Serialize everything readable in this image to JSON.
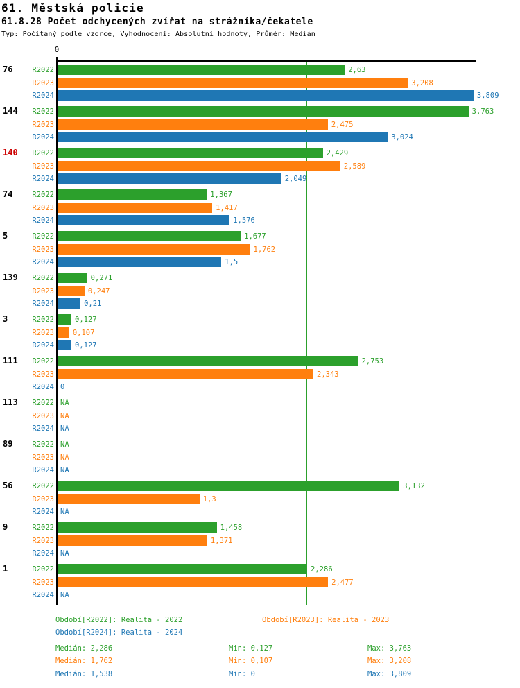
{
  "header": {
    "title": "61. Městská policie",
    "subtitle": "61.8.28 Počet odchycených zvířat na strážníka/čekatele",
    "meta": "Typ: Počítaný podle vzorce, Vyhodnocení: Absolutní hodnoty, Průměr: Medián"
  },
  "axis": {
    "zero_label": "0"
  },
  "colors": {
    "green": "#2ca02c",
    "orange": "#ff7f0e",
    "blue": "#1f77b4",
    "red": "#cc0000",
    "black": "#000000"
  },
  "chart_data": {
    "type": "bar",
    "orientation": "horizontal",
    "title": "61.8.28 Počet odchycených zvířat na strážníka/čekatele",
    "xlabel": "",
    "ylabel": "",
    "xlim": [
      0,
      3.84
    ],
    "grid": false,
    "series_labels": [
      "R2022",
      "R2023",
      "R2024"
    ],
    "series_colors": {
      "R2022": "#2ca02c",
      "R2023": "#ff7f0e",
      "R2024": "#1f77b4"
    },
    "groups": [
      {
        "label": "76",
        "label_color": "#000000",
        "rows": [
          {
            "series": "R2022",
            "display": "2,63",
            "value": 2.63
          },
          {
            "series": "R2023",
            "display": "3,208",
            "value": 3.208
          },
          {
            "series": "R2024",
            "display": "3,809",
            "value": 3.809
          }
        ]
      },
      {
        "label": "144",
        "label_color": "#000000",
        "rows": [
          {
            "series": "R2022",
            "display": "3,763",
            "value": 3.763
          },
          {
            "series": "R2023",
            "display": "2,475",
            "value": 2.475
          },
          {
            "series": "R2024",
            "display": "3,024",
            "value": 3.024
          }
        ]
      },
      {
        "label": "140",
        "label_color": "#cc0000",
        "rows": [
          {
            "series": "R2022",
            "display": "2,429",
            "value": 2.429
          },
          {
            "series": "R2023",
            "display": "2,589",
            "value": 2.589
          },
          {
            "series": "R2024",
            "display": "2,049",
            "value": 2.049
          }
        ]
      },
      {
        "label": "74",
        "label_color": "#000000",
        "rows": [
          {
            "series": "R2022",
            "display": "1,367",
            "value": 1.367
          },
          {
            "series": "R2023",
            "display": "1,417",
            "value": 1.417
          },
          {
            "series": "R2024",
            "display": "1,576",
            "value": 1.576
          }
        ]
      },
      {
        "label": "5",
        "label_color": "#000000",
        "rows": [
          {
            "series": "R2022",
            "display": "1,677",
            "value": 1.677
          },
          {
            "series": "R2023",
            "display": "1,762",
            "value": 1.762
          },
          {
            "series": "R2024",
            "display": "1,5",
            "value": 1.5
          }
        ]
      },
      {
        "label": "139",
        "label_color": "#000000",
        "rows": [
          {
            "series": "R2022",
            "display": "0,271",
            "value": 0.271
          },
          {
            "series": "R2023",
            "display": "0,247",
            "value": 0.247
          },
          {
            "series": "R2024",
            "display": "0,21",
            "value": 0.21
          }
        ]
      },
      {
        "label": "3",
        "label_color": "#000000",
        "rows": [
          {
            "series": "R2022",
            "display": "0,127",
            "value": 0.127
          },
          {
            "series": "R2023",
            "display": "0,107",
            "value": 0.107
          },
          {
            "series": "R2024",
            "display": "0,127",
            "value": 0.127
          }
        ]
      },
      {
        "label": "111",
        "label_color": "#000000",
        "rows": [
          {
            "series": "R2022",
            "display": "2,753",
            "value": 2.753
          },
          {
            "series": "R2023",
            "display": "2,343",
            "value": 2.343
          },
          {
            "series": "R2024",
            "display": "0",
            "value": 0
          }
        ]
      },
      {
        "label": "113",
        "label_color": "#000000",
        "rows": [
          {
            "series": "R2022",
            "display": "NA",
            "value": null
          },
          {
            "series": "R2023",
            "display": "NA",
            "value": null
          },
          {
            "series": "R2024",
            "display": "NA",
            "value": null
          }
        ]
      },
      {
        "label": "89",
        "label_color": "#000000",
        "rows": [
          {
            "series": "R2022",
            "display": "NA",
            "value": null
          },
          {
            "series": "R2023",
            "display": "NA",
            "value": null
          },
          {
            "series": "R2024",
            "display": "NA",
            "value": null
          }
        ]
      },
      {
        "label": "56",
        "label_color": "#000000",
        "rows": [
          {
            "series": "R2022",
            "display": "3,132",
            "value": 3.132
          },
          {
            "series": "R2023",
            "display": "1,3",
            "value": 1.3
          },
          {
            "series": "R2024",
            "display": "NA",
            "value": null
          }
        ]
      },
      {
        "label": "9",
        "label_color": "#000000",
        "rows": [
          {
            "series": "R2022",
            "display": "1,458",
            "value": 1.458
          },
          {
            "series": "R2023",
            "display": "1,371",
            "value": 1.371
          },
          {
            "series": "R2024",
            "display": "NA",
            "value": null
          }
        ]
      },
      {
        "label": "1",
        "label_color": "#000000",
        "rows": [
          {
            "series": "R2022",
            "display": "2,286",
            "value": 2.286
          },
          {
            "series": "R2023",
            "display": "2,477",
            "value": 2.477
          },
          {
            "series": "R2024",
            "display": "NA",
            "value": null
          }
        ]
      }
    ],
    "medians": [
      {
        "series": "R2022",
        "display": "2,286",
        "value": 2.286
      },
      {
        "series": "R2023",
        "display": "1,762",
        "value": 1.762
      },
      {
        "series": "R2024",
        "display": "1,538",
        "value": 1.538
      }
    ]
  },
  "legend": {
    "r2022": "Období[R2022]: Realita - 2022",
    "r2023": "Období[R2023]: Realita - 2023",
    "r2024": "Období[R2024]: Realita - 2024"
  },
  "stats": {
    "r2022": {
      "median": "Medián: 2,286",
      "min": "Min: 0,127",
      "max": "Max: 3,763"
    },
    "r2023": {
      "median": "Medián: 1,762",
      "min": "Min: 0,107",
      "max": "Max: 3,208"
    },
    "r2024": {
      "median": "Medián: 1,538",
      "min": "Min: 0",
      "max": "Max: 3,809"
    }
  }
}
